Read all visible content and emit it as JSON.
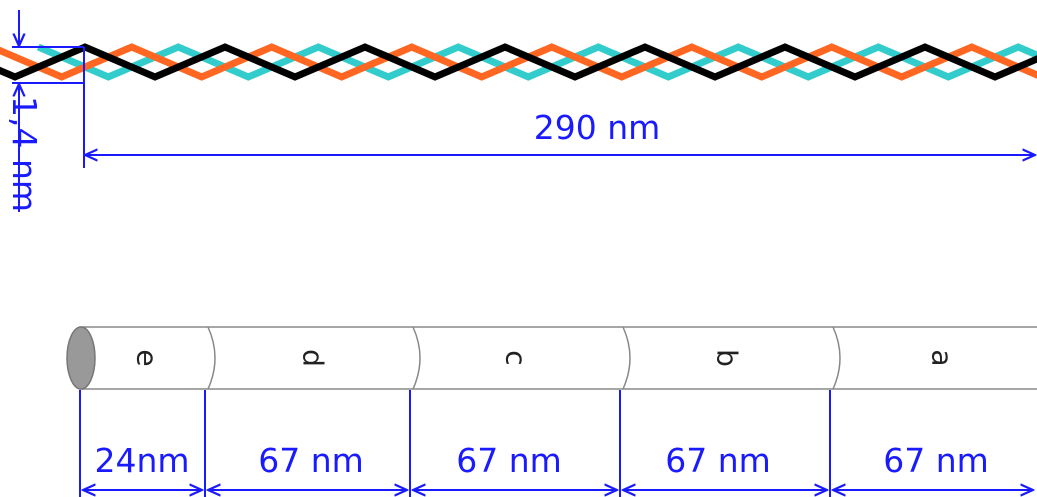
{
  "helix": {
    "diameter_label": "1,4 nm",
    "length_label": "290 nm",
    "strand_colors": [
      "#000000",
      "#ff6622",
      "#33cccc"
    ]
  },
  "rod": {
    "segments": [
      {
        "name": "e",
        "length_label": "24nm"
      },
      {
        "name": "d",
        "length_label": "67 nm"
      },
      {
        "name": "c",
        "length_label": "67 nm"
      },
      {
        "name": "b",
        "length_label": "67 nm"
      },
      {
        "name": "a",
        "length_label": "67 nm"
      }
    ]
  },
  "colors": {
    "dimension": "#1a1aff",
    "rod_fill": "#ffffff",
    "rod_outline": "#888888",
    "rod_end_cap": "#999999"
  }
}
